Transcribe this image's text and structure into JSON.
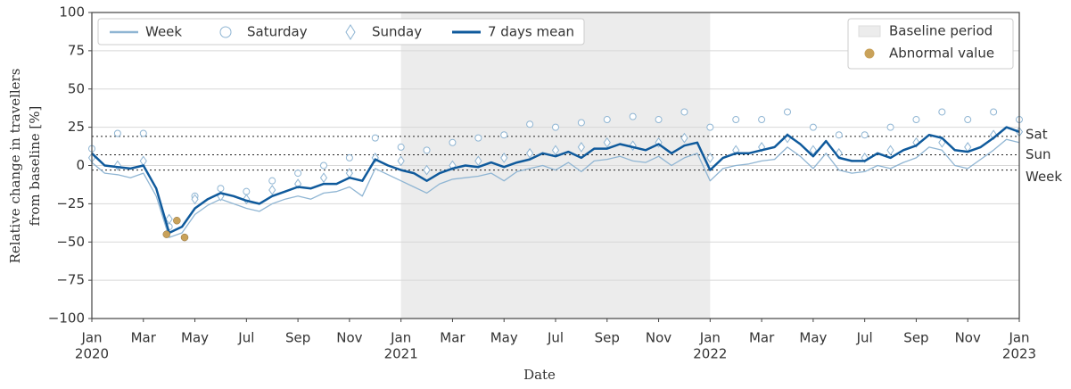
{
  "chart_data": {
    "type": "line",
    "ylabel": [
      "Relative change in travellers",
      "from baseline [%]"
    ],
    "xlabel": "Date",
    "xlim": [
      0,
      36
    ],
    "xticks": [
      {
        "value": 0,
        "label": "Jan"
      },
      {
        "value": 2,
        "label": "Mar"
      },
      {
        "value": 4,
        "label": "May"
      },
      {
        "value": 6,
        "label": "Jul"
      },
      {
        "value": 8,
        "label": "Sep"
      },
      {
        "value": 10,
        "label": "Nov"
      },
      {
        "value": 12,
        "label": "Jan"
      },
      {
        "value": 14,
        "label": "Mar"
      },
      {
        "value": 16,
        "label": "May"
      },
      {
        "value": 18,
        "label": "Jul"
      },
      {
        "value": 20,
        "label": "Sep"
      },
      {
        "value": 22,
        "label": "Nov"
      },
      {
        "value": 24,
        "label": "Jan"
      },
      {
        "value": 26,
        "label": "Mar"
      },
      {
        "value": 28,
        "label": "May"
      },
      {
        "value": 30,
        "label": "Jul"
      },
      {
        "value": 32,
        "label": "Sep"
      },
      {
        "value": 34,
        "label": "Nov"
      },
      {
        "value": 36,
        "label": "Jan"
      }
    ],
    "xtick_years": [
      {
        "value": 0,
        "label": "2020"
      },
      {
        "value": 12,
        "label": "2021"
      },
      {
        "value": 24,
        "label": "2022"
      },
      {
        "value": 36,
        "label": "2023"
      }
    ],
    "ylim": [
      -100,
      100
    ],
    "yticks": [
      {
        "value": -100,
        "label": "−100"
      },
      {
        "value": -75,
        "label": "−75"
      },
      {
        "value": -50,
        "label": "−50"
      },
      {
        "value": -25,
        "label": "−25"
      },
      0,
      25,
      50,
      75,
      100
    ],
    "grid": true,
    "baseline_period": {
      "name": "Baseline period",
      "xspan": [
        12,
        24
      ],
      "color": "#ececec",
      "legend_loc": "upper right"
    },
    "reference_lines": [
      {
        "label": "Sat",
        "value": 19
      },
      {
        "label": "Sun",
        "value": 7
      },
      {
        "label": "Week",
        "value": -3
      }
    ],
    "series": [
      {
        "name": "Week",
        "color": "#8fb5d3",
        "marker": "line",
        "legend_loc": "upper left",
        "x": [
          0,
          0.5,
          1,
          1.5,
          2,
          2.5,
          3,
          3.5,
          4,
          4.5,
          5,
          5.5,
          6,
          6.5,
          7,
          7.5,
          8,
          8.5,
          9,
          9.5,
          10,
          10.5,
          11,
          11.5,
          12,
          12.5,
          13,
          13.5,
          14,
          14.5,
          15,
          15.5,
          16,
          16.5,
          17,
          17.5,
          18,
          18.5,
          19,
          19.5,
          20,
          20.5,
          21,
          21.5,
          22,
          22.5,
          23,
          23.5,
          24,
          24.5,
          25,
          25.5,
          26,
          26.5,
          27,
          27.5,
          28,
          28.5,
          29,
          29.5,
          30,
          30.5,
          31,
          31.5,
          32,
          32.5,
          33,
          33.5,
          34,
          34.5,
          35,
          35.5,
          36
        ],
        "values": [
          2,
          -5,
          -6,
          -8,
          -5,
          -20,
          -47,
          -44,
          -32,
          -26,
          -22,
          -25,
          -28,
          -30,
          -25,
          -22,
          -20,
          -22,
          -18,
          -17,
          -14,
          -20,
          -2,
          -6,
          -10,
          -14,
          -18,
          -12,
          -9,
          -8,
          -7,
          -5,
          -10,
          -4,
          -2,
          0,
          -3,
          2,
          -4,
          3,
          4,
          6,
          3,
          2,
          6,
          0,
          5,
          8,
          -10,
          -2,
          0,
          1,
          3,
          4,
          12,
          6,
          -2,
          8,
          -3,
          -5,
          -4,
          0,
          -2,
          2,
          5,
          12,
          10,
          0,
          -2,
          4,
          10,
          17,
          15
        ]
      },
      {
        "name": "Saturday",
        "color": "#8fb5d3",
        "marker": "circle",
        "legend_loc": "upper left",
        "x": [
          0,
          1,
          2,
          3,
          4,
          5,
          6,
          7,
          8,
          9,
          10,
          11,
          12,
          13,
          14,
          15,
          16,
          17,
          18,
          19,
          20,
          21,
          22,
          23,
          24,
          25,
          26,
          27,
          28,
          29,
          30,
          31,
          32,
          33,
          34,
          35,
          36
        ],
        "values": [
          11,
          21,
          21,
          -40,
          -20,
          -15,
          -17,
          -10,
          -5,
          0,
          5,
          18,
          12,
          10,
          15,
          18,
          20,
          27,
          25,
          28,
          30,
          32,
          30,
          35,
          25,
          30,
          30,
          35,
          25,
          20,
          20,
          25,
          30,
          35,
          30,
          35,
          30
        ]
      },
      {
        "name": "Sunday",
        "color": "#8fb5d3",
        "marker": "diamond",
        "legend_loc": "upper left",
        "x": [
          0,
          1,
          2,
          3,
          4,
          5,
          6,
          7,
          8,
          9,
          10,
          11,
          12,
          13,
          14,
          15,
          16,
          17,
          18,
          19,
          20,
          21,
          22,
          23,
          24,
          25,
          26,
          27,
          28,
          29,
          30,
          31,
          32,
          33,
          34,
          35,
          36
        ],
        "values": [
          5,
          0,
          3,
          -35,
          -22,
          -20,
          -22,
          -16,
          -12,
          -8,
          -5,
          5,
          3,
          -3,
          0,
          3,
          5,
          8,
          10,
          12,
          15,
          13,
          15,
          18,
          5,
          10,
          12,
          18,
          10,
          8,
          5,
          10,
          15,
          15,
          12,
          20,
          22
        ]
      },
      {
        "name": "7 days mean",
        "color": "#0f5a9c",
        "marker": "thick-line",
        "legend_loc": "upper left",
        "x": [
          0,
          0.5,
          1,
          1.5,
          2,
          2.5,
          3,
          3.5,
          4,
          4.5,
          5,
          5.5,
          6,
          6.5,
          7,
          7.5,
          8,
          8.5,
          9,
          9.5,
          10,
          10.5,
          11,
          11.5,
          12,
          12.5,
          13,
          13.5,
          14,
          14.5,
          15,
          15.5,
          16,
          16.5,
          17,
          17.5,
          18,
          18.5,
          19,
          19.5,
          20,
          20.5,
          21,
          21.5,
          22,
          22.5,
          23,
          23.5,
          24,
          24.5,
          25,
          25.5,
          26,
          26.5,
          27,
          27.5,
          28,
          28.5,
          29,
          29.5,
          30,
          30.5,
          31,
          31.5,
          32,
          32.5,
          33,
          33.5,
          34,
          34.5,
          35,
          35.5,
          36
        ],
        "values": [
          8,
          0,
          -1,
          -2,
          0,
          -15,
          -44,
          -40,
          -28,
          -22,
          -18,
          -20,
          -23,
          -25,
          -20,
          -17,
          -14,
          -15,
          -12,
          -12,
          -8,
          -10,
          4,
          0,
          -3,
          -5,
          -10,
          -5,
          -2,
          0,
          -1,
          2,
          -1,
          2,
          4,
          8,
          6,
          9,
          5,
          11,
          11,
          14,
          12,
          10,
          14,
          8,
          13,
          15,
          -3,
          5,
          8,
          8,
          10,
          12,
          20,
          14,
          6,
          16,
          5,
          3,
          3,
          8,
          5,
          10,
          13,
          20,
          18,
          10,
          9,
          12,
          18,
          25,
          22
        ]
      },
      {
        "name": "Abnormal value",
        "color": "#c9a25a",
        "marker": "dot",
        "legend_loc": "upper right",
        "x": [
          2.9,
          3.3,
          3.6
        ],
        "values": [
          -45,
          -36,
          -47
        ]
      }
    ]
  }
}
